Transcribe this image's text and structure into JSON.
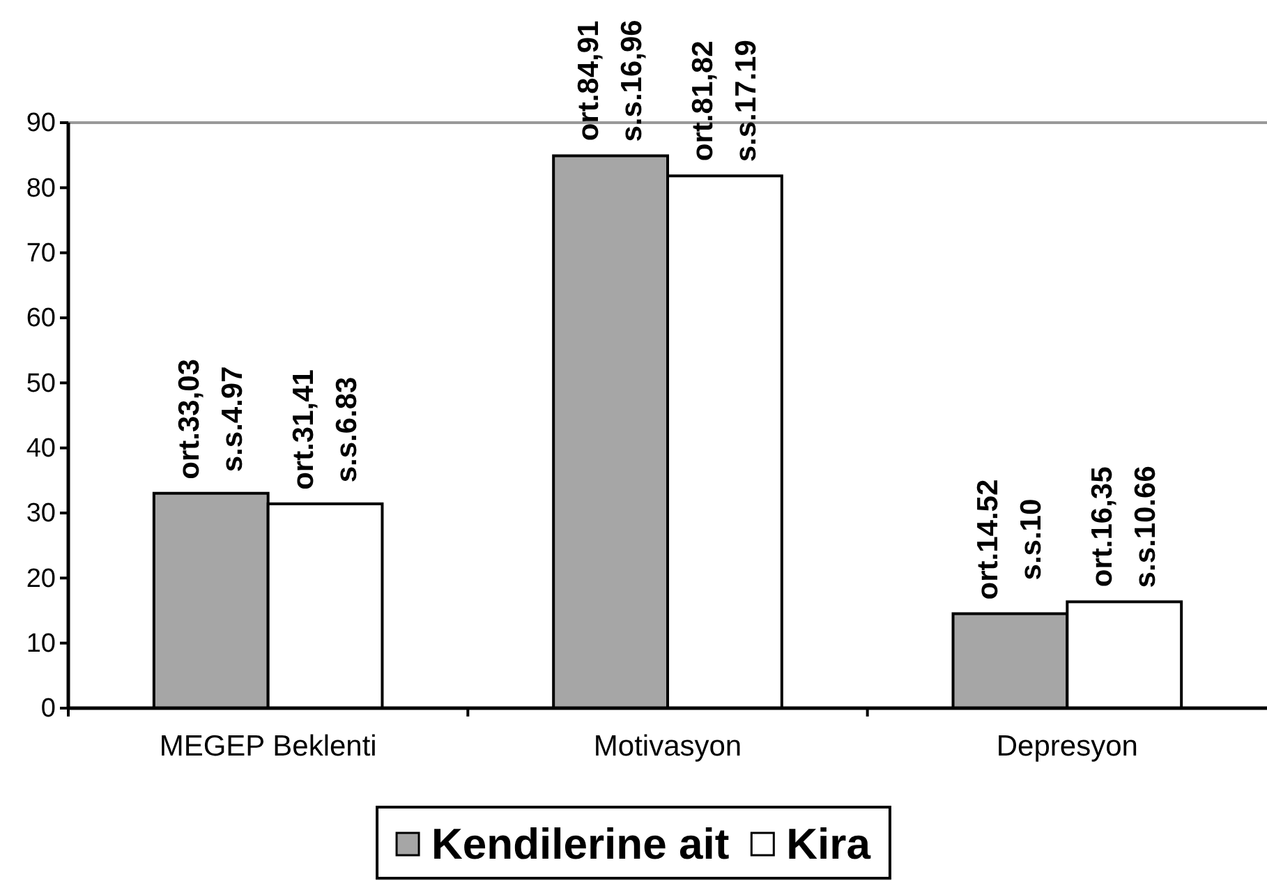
{
  "chart_data": {
    "type": "bar",
    "categories": [
      "MEGEP Beklenti",
      "Motivasyon",
      "Depresyon"
    ],
    "series": [
      {
        "name": "Kendilerine ait",
        "color": "#a6a6a6",
        "values": [
          33.03,
          84.91,
          14.52
        ],
        "value_labels": [
          "ort.33,03\ns.s.4.97",
          "ort.84,91\ns.s.16,96",
          "ort.14.52\ns.s.10"
        ]
      },
      {
        "name": "Kira",
        "color": "#ffffff",
        "values": [
          31.41,
          81.82,
          16.35
        ],
        "value_labels": [
          "ort.31,41\ns.s.6.83",
          "ort.81,82\ns.s.17.19",
          "ort.16,35\ns.s.10.66"
        ]
      }
    ],
    "ylim": [
      0,
      90
    ],
    "yticks": [
      0,
      10,
      20,
      30,
      40,
      50,
      60,
      70,
      80,
      90
    ],
    "ref_lines": [
      {
        "axis": "y",
        "value": 90,
        "color": "#999999"
      }
    ],
    "legend": "bottom"
  }
}
